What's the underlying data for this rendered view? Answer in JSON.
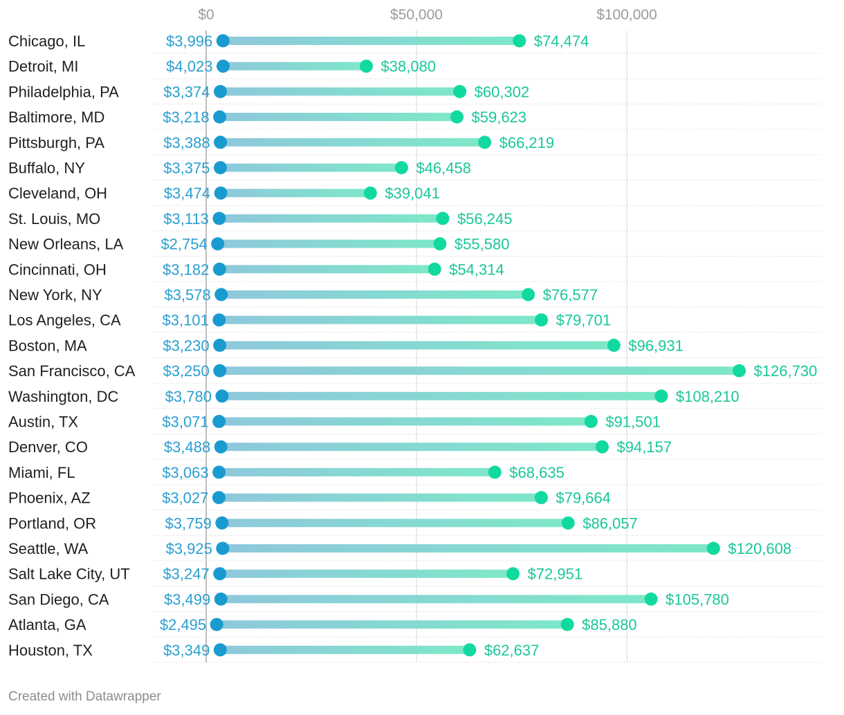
{
  "chart_data": {
    "type": "range-dot",
    "title": "",
    "xlabel": "",
    "ylabel": "",
    "xlim": [
      0,
      145000
    ],
    "x_ticks": [
      {
        "value": 0,
        "label": "$0"
      },
      {
        "value": 50000,
        "label": "$50,000"
      },
      {
        "value": 100000,
        "label": "$100,000"
      }
    ],
    "series": [
      {
        "name": "low",
        "color": "#1a9bd0"
      },
      {
        "name": "high",
        "color": "#12d99f"
      }
    ],
    "rows": [
      {
        "city": "Chicago, IL",
        "low": 3996,
        "low_label": "$3,996",
        "high": 74474,
        "high_label": "$74,474"
      },
      {
        "city": "Detroit, MI",
        "low": 4023,
        "low_label": "$4,023",
        "high": 38080,
        "high_label": "$38,080"
      },
      {
        "city": "Philadelphia, PA",
        "low": 3374,
        "low_label": "$3,374",
        "high": 60302,
        "high_label": "$60,302"
      },
      {
        "city": "Baltimore, MD",
        "low": 3218,
        "low_label": "$3,218",
        "high": 59623,
        "high_label": "$59,623"
      },
      {
        "city": "Pittsburgh, PA",
        "low": 3388,
        "low_label": "$3,388",
        "high": 66219,
        "high_label": "$66,219"
      },
      {
        "city": "Buffalo, NY",
        "low": 3375,
        "low_label": "$3,375",
        "high": 46458,
        "high_label": "$46,458"
      },
      {
        "city": "Cleveland, OH",
        "low": 3474,
        "low_label": "$3,474",
        "high": 39041,
        "high_label": "$39,041"
      },
      {
        "city": "St. Louis, MO",
        "low": 3113,
        "low_label": "$3,113",
        "high": 56245,
        "high_label": "$56,245"
      },
      {
        "city": "New Orleans, LA",
        "low": 2754,
        "low_label": "$2,754",
        "high": 55580,
        "high_label": "$55,580"
      },
      {
        "city": "Cincinnati, OH",
        "low": 3182,
        "low_label": "$3,182",
        "high": 54314,
        "high_label": "$54,314"
      },
      {
        "city": "New York, NY",
        "low": 3578,
        "low_label": "$3,578",
        "high": 76577,
        "high_label": "$76,577"
      },
      {
        "city": "Los Angeles, CA",
        "low": 3101,
        "low_label": "$3,101",
        "high": 79701,
        "high_label": "$79,701"
      },
      {
        "city": "Boston, MA",
        "low": 3230,
        "low_label": "$3,230",
        "high": 96931,
        "high_label": "$96,931"
      },
      {
        "city": "San Francisco, CA",
        "low": 3250,
        "low_label": "$3,250",
        "high": 126730,
        "high_label": "$126,730"
      },
      {
        "city": "Washington, DC",
        "low": 3780,
        "low_label": "$3,780",
        "high": 108210,
        "high_label": "$108,210"
      },
      {
        "city": "Austin, TX",
        "low": 3071,
        "low_label": "$3,071",
        "high": 91501,
        "high_label": "$91,501"
      },
      {
        "city": "Denver, CO",
        "low": 3488,
        "low_label": "$3,488",
        "high": 94157,
        "high_label": "$94,157"
      },
      {
        "city": "Miami, FL",
        "low": 3063,
        "low_label": "$3,063",
        "high": 68635,
        "high_label": "$68,635"
      },
      {
        "city": "Phoenix, AZ",
        "low": 3027,
        "low_label": "$3,027",
        "high": 79664,
        "high_label": "$79,664"
      },
      {
        "city": "Portland, OR",
        "low": 3759,
        "low_label": "$3,759",
        "high": 86057,
        "high_label": "$86,057"
      },
      {
        "city": "Seattle, WA",
        "low": 3925,
        "low_label": "$3,925",
        "high": 120608,
        "high_label": "$120,608"
      },
      {
        "city": "Salt Lake City, UT",
        "low": 3247,
        "low_label": "$3,247",
        "high": 72951,
        "high_label": "$72,951"
      },
      {
        "city": "San Diego, CA",
        "low": 3499,
        "low_label": "$3,499",
        "high": 105780,
        "high_label": "$105,780"
      },
      {
        "city": "Atlanta, GA",
        "low": 2495,
        "low_label": "$2,495",
        "high": 85880,
        "high_label": "$85,880"
      },
      {
        "city": "Houston, TX",
        "low": 3349,
        "low_label": "$3,349",
        "high": 62637,
        "high_label": "$62,637"
      }
    ]
  },
  "footer": {
    "credit": "Created with Datawrapper"
  }
}
